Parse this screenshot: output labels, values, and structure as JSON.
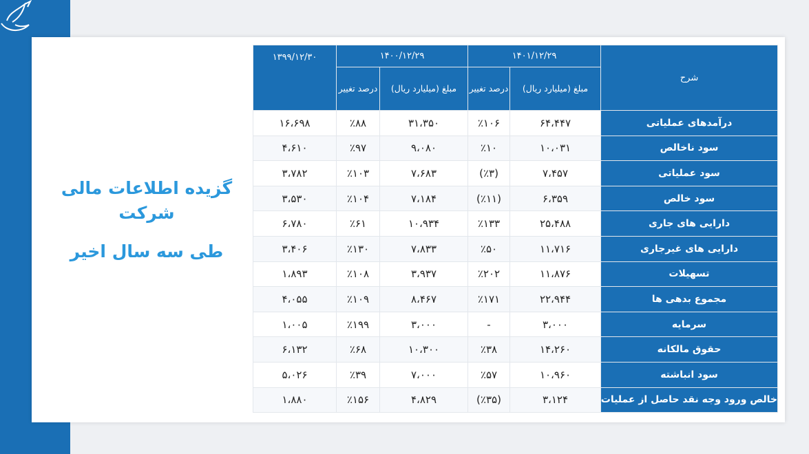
{
  "title": {
    "line1": "گزیده اطلاعات مالی شرکت",
    "line2": "طی سه سال اخیر"
  },
  "table": {
    "headers": {
      "description": "شرح",
      "year1": "۱۴۰۱/۱۲/۲۹",
      "year2": "۱۴۰۰/۱۲/۲۹",
      "year3": "۱۳۹۹/۱۲/۳۰",
      "amount": "مبلغ (میلیارد ریال)",
      "change": "درصد تغییر"
    },
    "rows": [
      {
        "label": "درآمدهای عملیاتی",
        "y1_amount": "۶۴،۴۴۷",
        "y1_change": "٪۱۰۶",
        "y2_amount": "۳۱،۳۵۰",
        "y2_change": "٪۸۸",
        "y3_amount": "۱۶،۶۹۸"
      },
      {
        "label": "سود ناخالص",
        "y1_amount": "۱۰،۰۳۱",
        "y1_change": "٪۱۰",
        "y2_amount": "۹،۰۸۰",
        "y2_change": "٪۹۷",
        "y3_amount": "۴،۶۱۰"
      },
      {
        "label": "سود عملیاتی",
        "y1_amount": "۷،۴۵۷",
        "y1_change": "(٪۳)",
        "y2_amount": "۷،۶۸۳",
        "y2_change": "٪۱۰۳",
        "y3_amount": "۳،۷۸۲"
      },
      {
        "label": "سود خالص",
        "y1_amount": "۶،۳۵۹",
        "y1_change": "(٪۱۱)",
        "y2_amount": "۷،۱۸۴",
        "y2_change": "٪۱۰۴",
        "y3_amount": "۳،۵۳۰"
      },
      {
        "label": "دارایی های جاری",
        "y1_amount": "۲۵،۴۸۸",
        "y1_change": "٪۱۳۳",
        "y2_amount": "۱۰،۹۳۴",
        "y2_change": "٪۶۱",
        "y3_amount": "۶،۷۸۰"
      },
      {
        "label": "دارایی های غیرجاری",
        "y1_amount": "۱۱،۷۱۶",
        "y1_change": "٪۵۰",
        "y2_amount": "۷،۸۳۳",
        "y2_change": "٪۱۳۰",
        "y3_amount": "۳،۴۰۶"
      },
      {
        "label": "تسهیلات",
        "y1_amount": "۱۱،۸۷۶",
        "y1_change": "٪۲۰۲",
        "y2_amount": "۳،۹۳۷",
        "y2_change": "٪۱۰۸",
        "y3_amount": "۱،۸۹۳"
      },
      {
        "label": "مجموع بدهی ها",
        "y1_amount": "۲۲،۹۴۴",
        "y1_change": "٪۱۷۱",
        "y2_amount": "۸،۴۶۷",
        "y2_change": "٪۱۰۹",
        "y3_amount": "۴،۰۵۵"
      },
      {
        "label": "سرمایه",
        "y1_amount": "۳،۰۰۰",
        "y1_change": "-",
        "y2_amount": "۳،۰۰۰",
        "y2_change": "٪۱۹۹",
        "y3_amount": "۱،۰۰۵"
      },
      {
        "label": "حقوق مالکانه",
        "y1_amount": "۱۴،۲۶۰",
        "y1_change": "٪۳۸",
        "y2_amount": "۱۰،۳۰۰",
        "y2_change": "٪۶۸",
        "y3_amount": "۶،۱۳۲"
      },
      {
        "label": "سود انباشته",
        "y1_amount": "۱۰،۹۶۰",
        "y1_change": "٪۵۷",
        "y2_amount": "۷،۰۰۰",
        "y2_change": "٪۳۹",
        "y3_amount": "۵،۰۲۶"
      },
      {
        "label": "خالص ورود وجه نقد حاصل از عملیات",
        "y1_amount": "۳،۱۲۴",
        "y1_change": "(٪۳۵)",
        "y2_amount": "۴،۸۲۹",
        "y2_change": "٪۱۵۶",
        "y3_amount": "۱،۸۸۰"
      }
    ]
  },
  "colors": {
    "accent": "#1a6fb5",
    "title": "#2b98dc"
  }
}
